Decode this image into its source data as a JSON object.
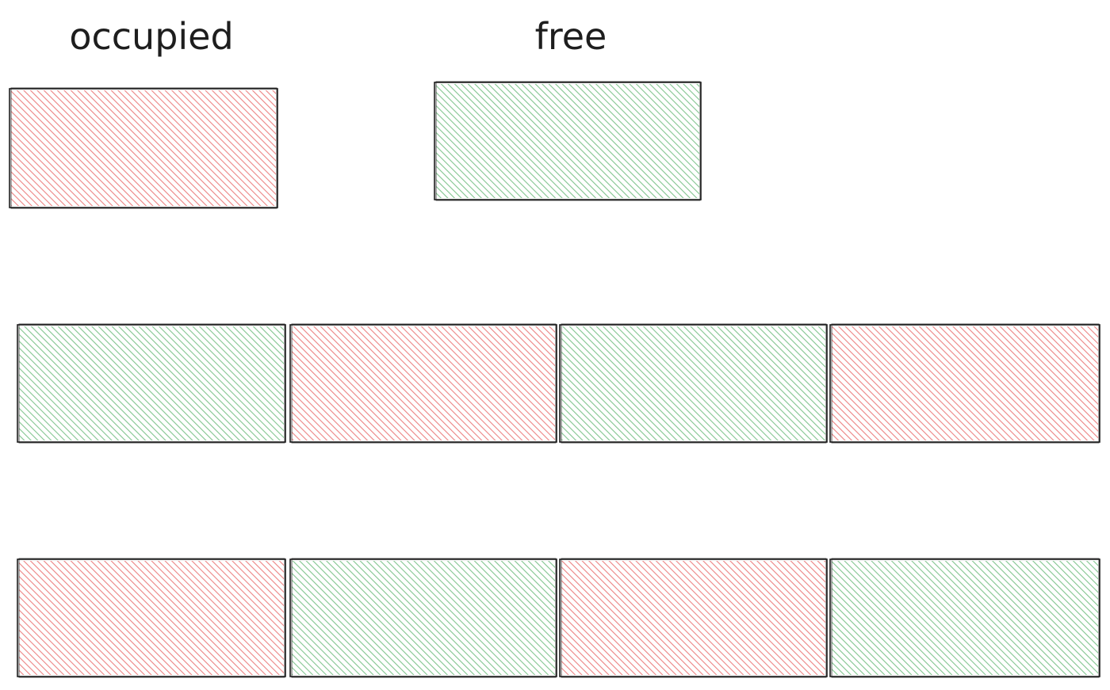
{
  "legend": {
    "occupied_label": "occupied",
    "free_label": "free"
  },
  "colors": {
    "occupied": "#e03131",
    "free": "#2f9e44",
    "stroke": "#1e1e1e"
  },
  "legend_states": [
    "occupied",
    "free"
  ],
  "rows": [
    [
      "free",
      "occupied",
      "free",
      "occupied"
    ],
    [
      "occupied",
      "free",
      "occupied",
      "free"
    ]
  ]
}
